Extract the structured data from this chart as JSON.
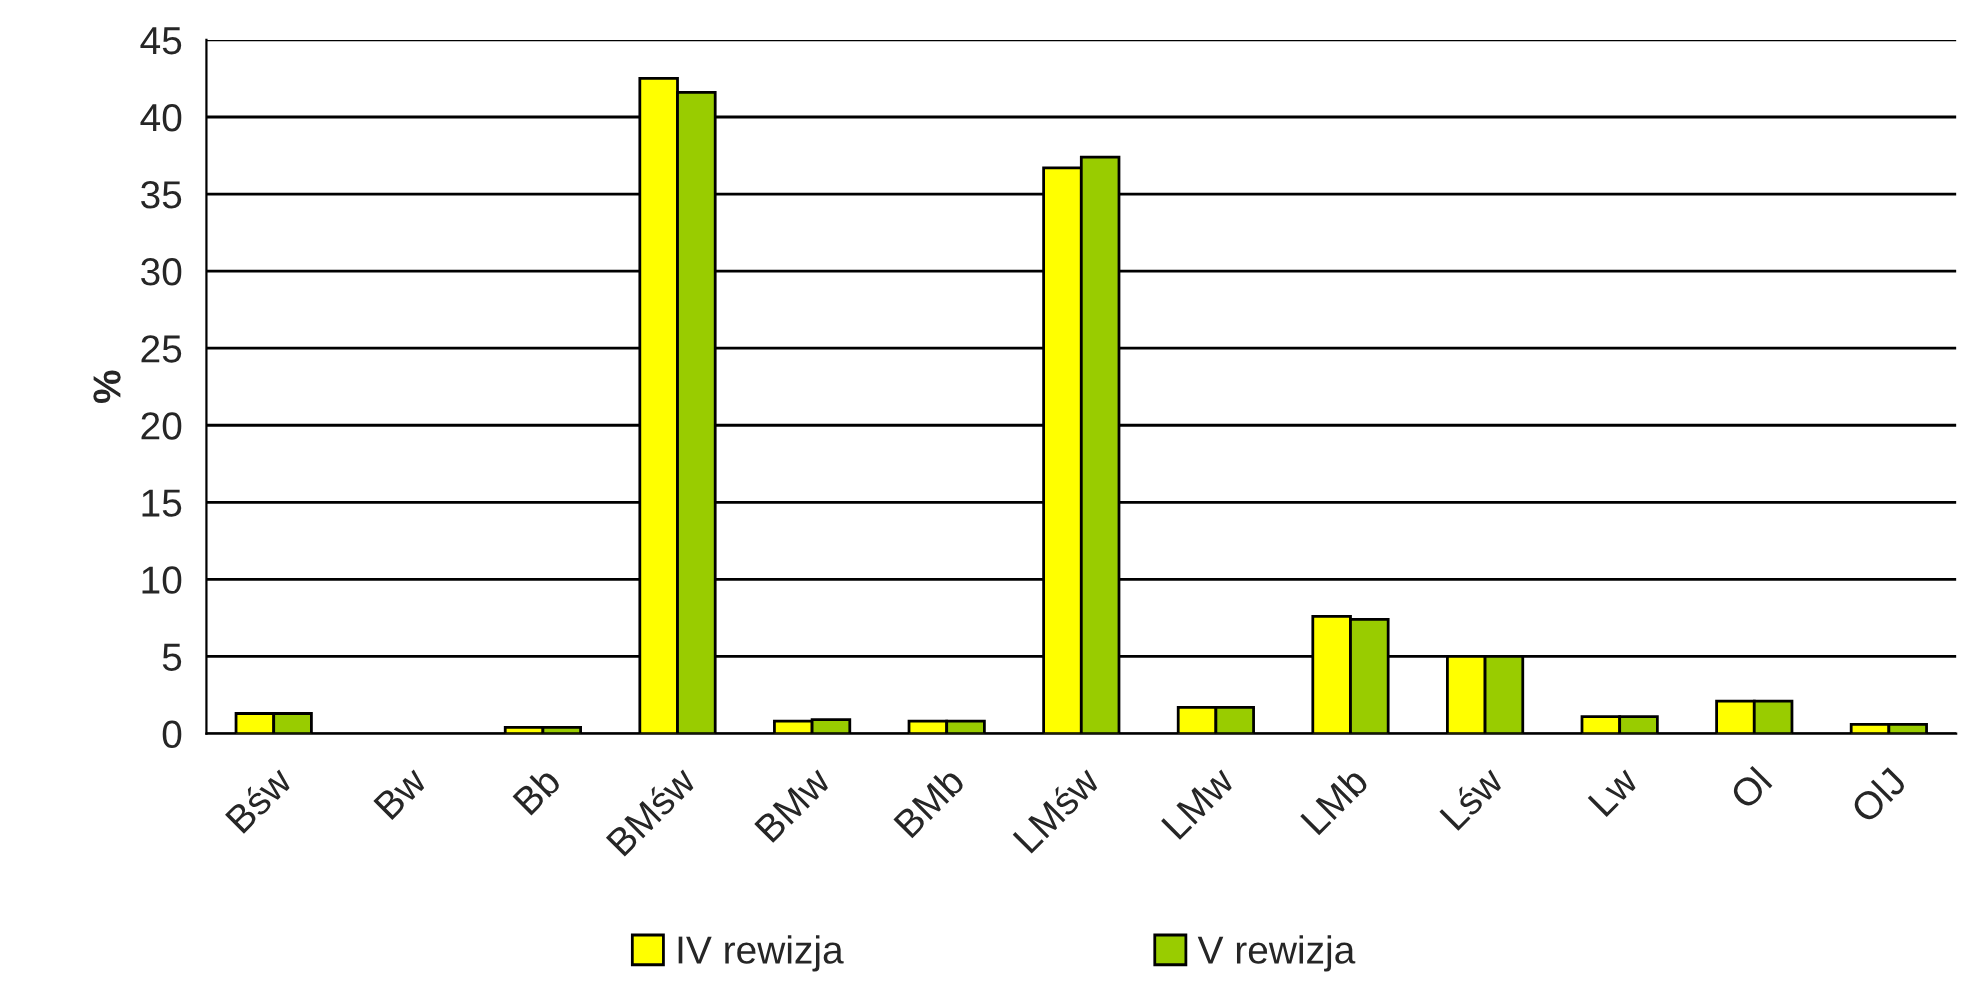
{
  "chart_data": {
    "type": "bar",
    "ylabel": "%",
    "categories": [
      "Bśw",
      "Bw",
      "Bb",
      "BMśw",
      "BMw",
      "BMb",
      "LMśw",
      "LMw",
      "LMb",
      "Lśw",
      "Lw",
      "Ol",
      "OlJ"
    ],
    "series": [
      {
        "name": "IV rewizja",
        "color": "#ffff00",
        "values": [
          1.3,
          null,
          0.4,
          42.5,
          0.8,
          0.8,
          36.7,
          1.7,
          7.6,
          5,
          1.1,
          2.1,
          0.6
        ]
      },
      {
        "name": "V rewizja",
        "color": "#99cc00",
        "values": [
          1.3,
          null,
          0.4,
          41.6,
          0.9,
          0.8,
          37.4,
          1.7,
          7.4,
          5,
          1.1,
          2.1,
          0.6
        ]
      }
    ],
    "ylim": [
      0,
      45
    ],
    "yticks": [
      0,
      5,
      10,
      15,
      20,
      25,
      30,
      35,
      40,
      45
    ],
    "grid": "y",
    "legend": "bottom"
  }
}
